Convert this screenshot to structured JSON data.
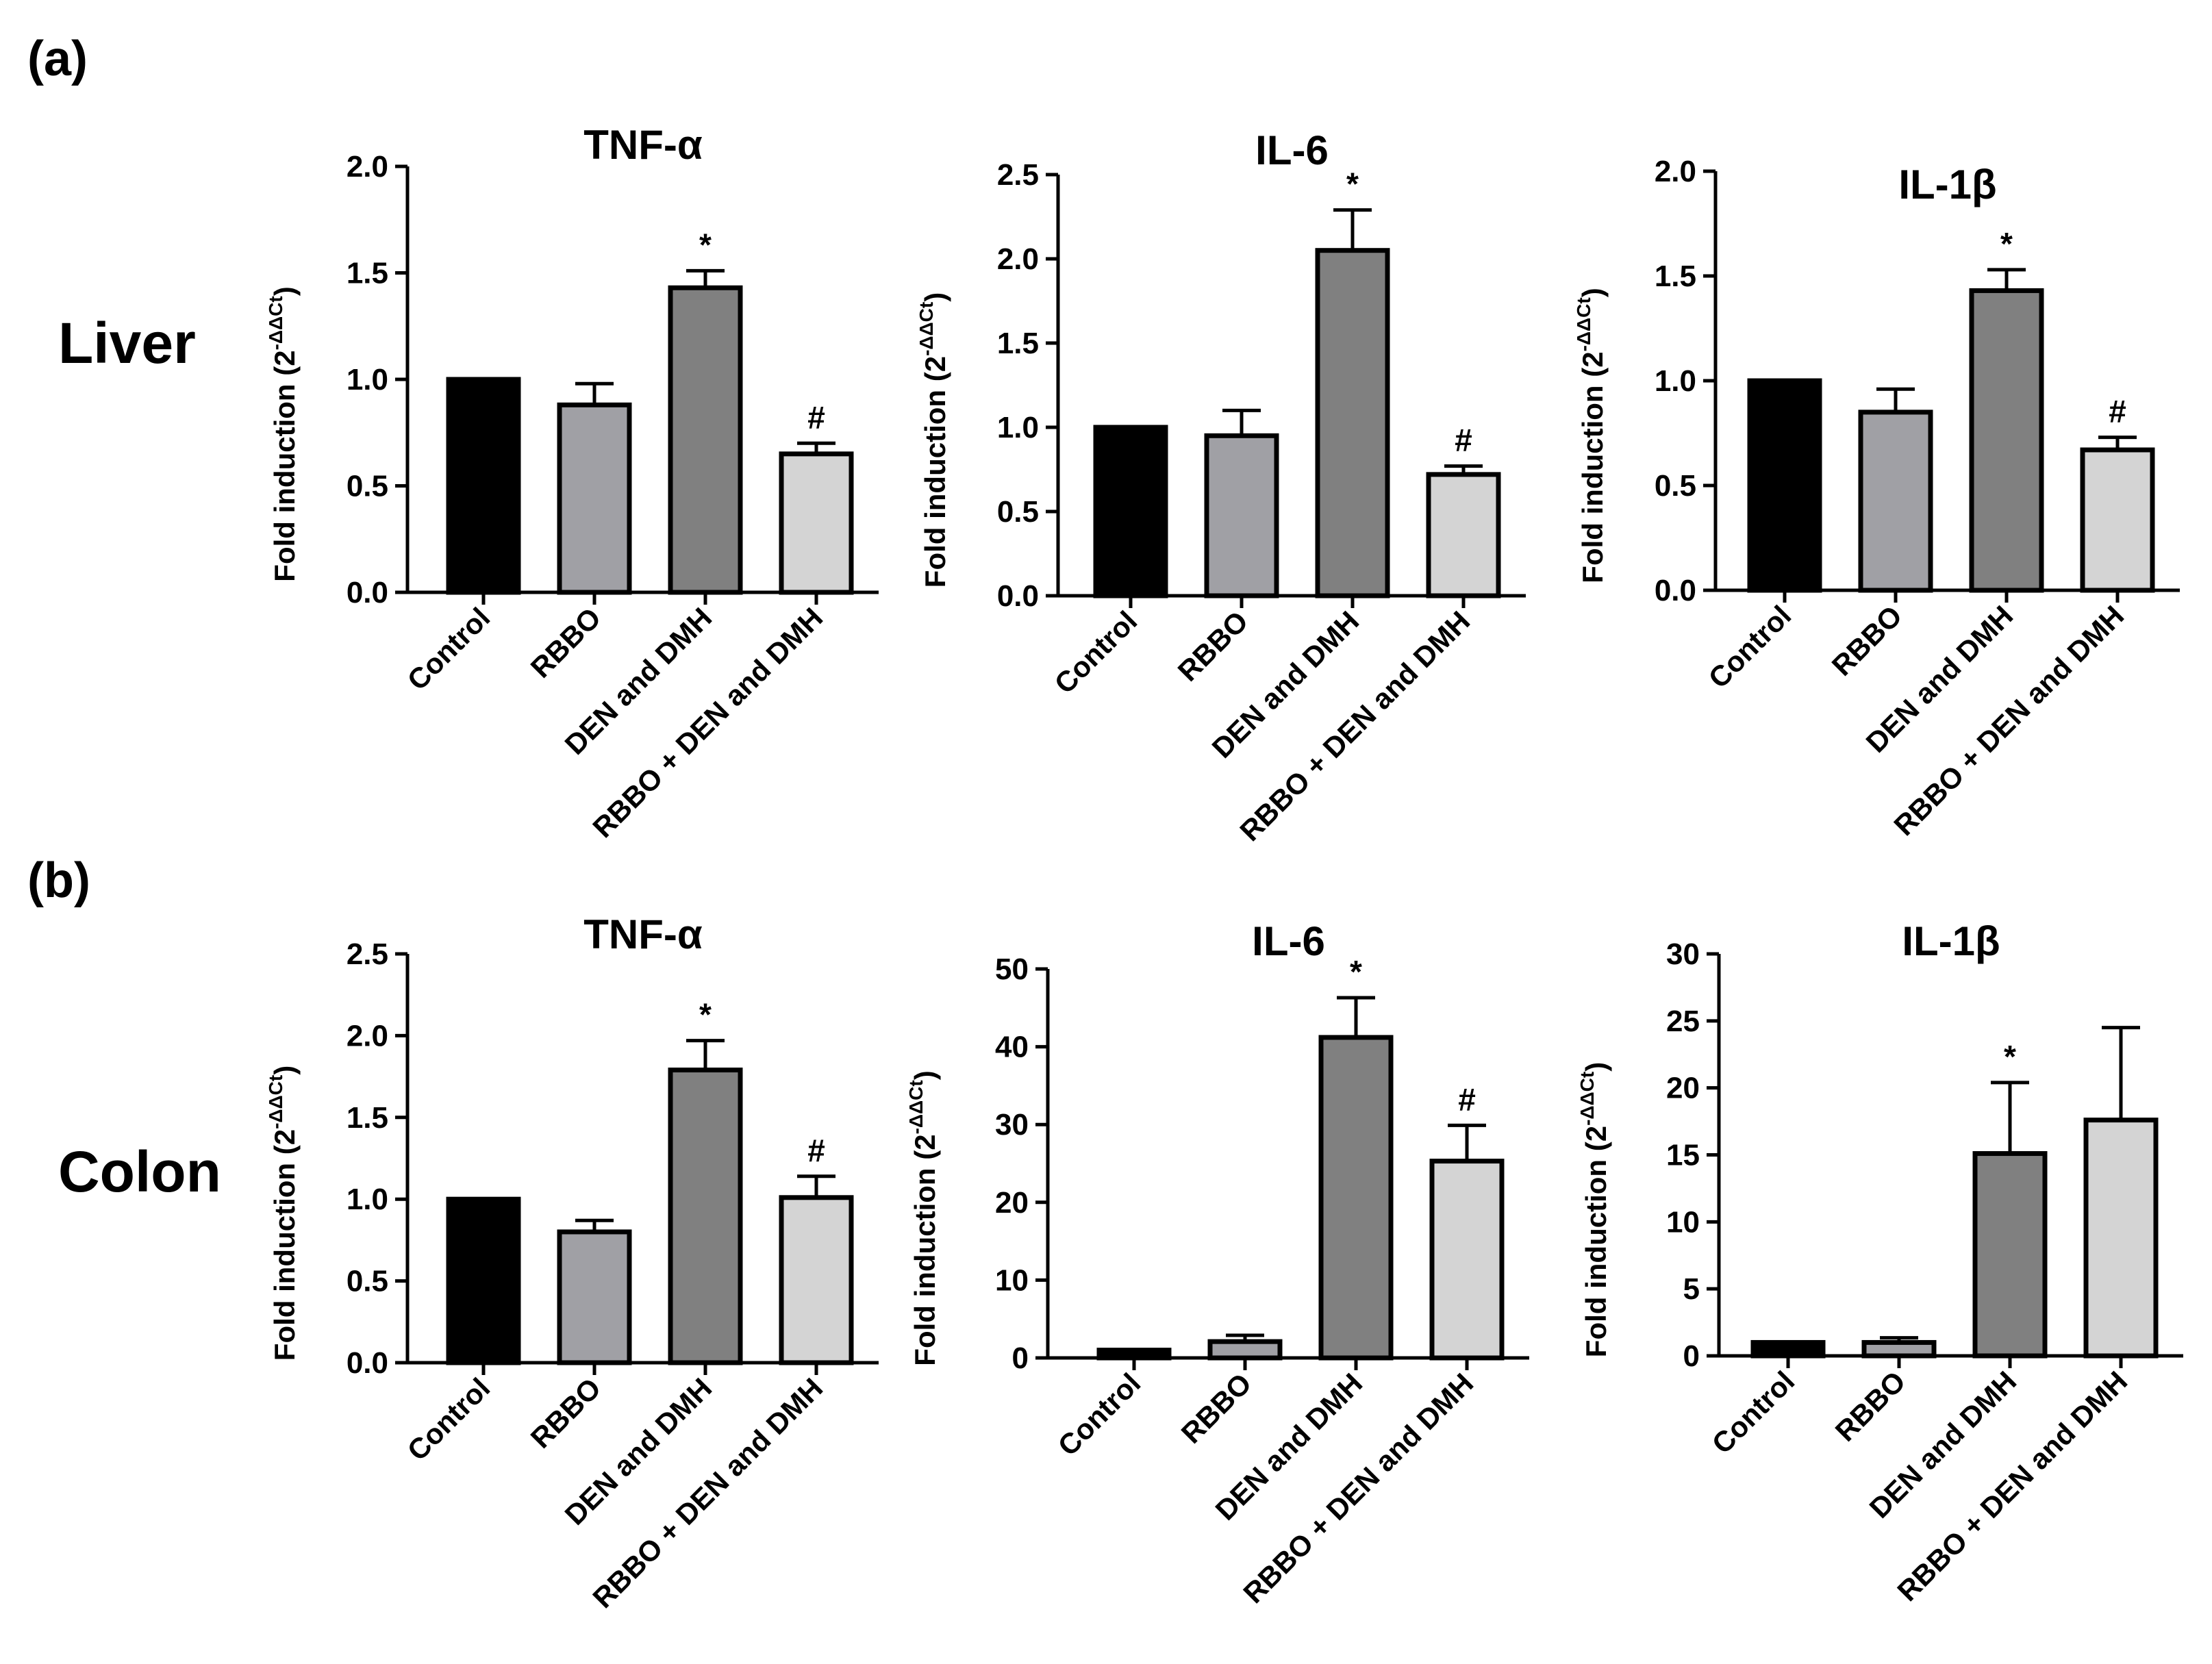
{
  "figure": {
    "panel_labels": [
      "(a)",
      "(b)"
    ],
    "row_labels": [
      "Liver",
      "Colon"
    ]
  },
  "colors": [
    "#000000",
    "#a0a0a5",
    "#808080",
    "#d4d4d4"
  ],
  "chart_data": [
    {
      "type": "bar",
      "panel": "(a)",
      "row": "Liver",
      "title": "TNF-α",
      "ylabel": "Fold induction (2-ΔΔCt)",
      "categories": [
        "Control",
        "RBBO",
        "DEN and DMH",
        "RBBO + DEN and DMH"
      ],
      "values": [
        1.0,
        0.88,
        1.43,
        0.65
      ],
      "errors": [
        0,
        0.1,
        0.08,
        0.05
      ],
      "significance": [
        "",
        "",
        "*",
        "#"
      ],
      "ylim": [
        0,
        2.0
      ],
      "yticks": [
        "0.0",
        "0.5",
        "1.0",
        "1.5",
        "2.0"
      ]
    },
    {
      "type": "bar",
      "panel": "(a)",
      "row": "Liver",
      "title": "IL-6",
      "ylabel": "Fold induction (2-ΔΔCt)",
      "categories": [
        "Control",
        "RBBO",
        "DEN and DMH",
        "RBBO + DEN and DMH"
      ],
      "values": [
        1.0,
        0.95,
        2.05,
        0.72
      ],
      "errors": [
        0,
        0.15,
        0.24,
        0.05
      ],
      "significance": [
        "",
        "",
        "*",
        "#"
      ],
      "ylim": [
        0,
        2.5
      ],
      "yticks": [
        "0.0",
        "0.5",
        "1.0",
        "1.5",
        "2.0",
        "2.5"
      ]
    },
    {
      "type": "bar",
      "panel": "(a)",
      "row": "Liver",
      "title": "IL-1β",
      "ylabel": "Fold induction (2-ΔΔCt)",
      "categories": [
        "Control",
        "RBBO",
        "DEN and DMH",
        "RBBO + DEN and DMH"
      ],
      "values": [
        1.0,
        0.85,
        1.43,
        0.67
      ],
      "errors": [
        0,
        0.11,
        0.1,
        0.06
      ],
      "significance": [
        "",
        "",
        "*",
        "#"
      ],
      "ylim": [
        0,
        2.0
      ],
      "yticks": [
        "0.0",
        "0.5",
        "1.0",
        "1.5",
        "2.0"
      ]
    },
    {
      "type": "bar",
      "panel": "(b)",
      "row": "Colon",
      "title": "TNF-α",
      "ylabel": "Fold induction (2-ΔΔCt)",
      "categories": [
        "Control",
        "RBBO",
        "DEN and DMH",
        "RBBO + DEN and DMH"
      ],
      "values": [
        1.0,
        0.8,
        1.79,
        1.01
      ],
      "errors": [
        0,
        0.07,
        0.18,
        0.13
      ],
      "significance": [
        "",
        "",
        "*",
        "#"
      ],
      "ylim": [
        0,
        2.5
      ],
      "yticks": [
        "0.0",
        "0.5",
        "1.0",
        "1.5",
        "2.0",
        "2.5"
      ]
    },
    {
      "type": "bar",
      "panel": "(b)",
      "row": "Colon",
      "title": "IL-6",
      "ylabel": "Fold induction (2-ΔΔCt)",
      "categories": [
        "Control",
        "RBBO",
        "DEN and DMH",
        "RBBO + DEN and DMH"
      ],
      "values": [
        1.0,
        2.1,
        41.2,
        25.3
      ],
      "errors": [
        0,
        0.8,
        5.1,
        4.6
      ],
      "significance": [
        "",
        "",
        "*",
        "#"
      ],
      "ylim": [
        0,
        50
      ],
      "yticks": [
        "0",
        "10",
        "20",
        "30",
        "40",
        "50"
      ]
    },
    {
      "type": "bar",
      "panel": "(b)",
      "row": "Colon",
      "title": "IL-1β",
      "ylabel": "Fold induction (2-ΔΔCt)",
      "categories": [
        "Control",
        "RBBO",
        "DEN and DMH",
        "RBBO + DEN and DMH"
      ],
      "values": [
        1.0,
        1.0,
        15.1,
        17.6
      ],
      "errors": [
        0,
        0.35,
        5.3,
        6.9
      ],
      "significance": [
        "",
        "",
        "*",
        ""
      ],
      "ylim": [
        0,
        30
      ],
      "yticks": [
        "0",
        "5",
        "10",
        "15",
        "20",
        "25",
        "30"
      ]
    }
  ]
}
